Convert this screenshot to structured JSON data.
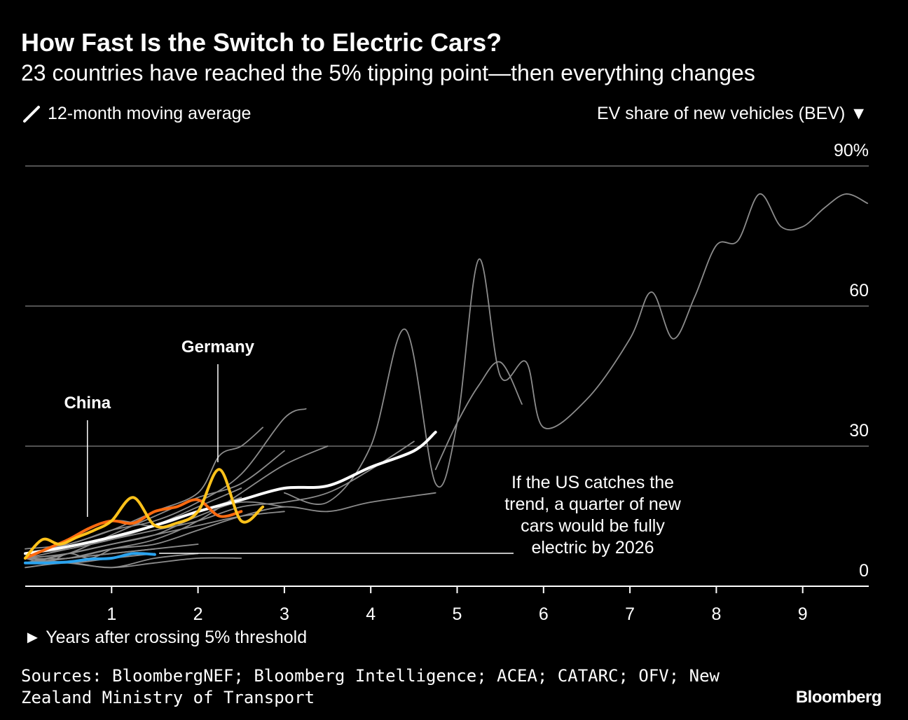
{
  "header": {
    "title": "How Fast Is the Switch to Electric Cars?",
    "subtitle": "23 countries have reached the 5% tipping point—then everything changes"
  },
  "key": {
    "moving_average_label": "12-month moving average",
    "moving_average_icon": "slash-line-icon",
    "y_axis_label": "EV share of new vehicles (BEV) ▼",
    "x_axis_label": "► Years after crossing 5% threshold"
  },
  "annotations": {
    "china": "China",
    "germany": "Germany",
    "us_note_lines": [
      "If the US catches the",
      "trend, a quarter of new",
      "cars would be fully",
      "electric by 2026"
    ]
  },
  "footer": {
    "sources": "Sources: BloombergNEF; Bloomberg Intelligence; ACEA; CATARC; OFV; New Zealand Ministry of Transport",
    "brand": "Bloomberg"
  },
  "colors": {
    "background": "#000000",
    "gridline": "#6e6e6e",
    "other_countries": "#8c8c8c",
    "average": "#ffffff",
    "china": "#ff6a10",
    "germany": "#ffc21a",
    "us": "#2aa3ef"
  },
  "chart_data": {
    "type": "line",
    "title": "How Fast Is the Switch to Electric Cars?",
    "subtitle": "23 countries have reached the 5% tipping point—then everything changes",
    "xlabel": "Years after crossing 5% threshold",
    "ylabel": "EV share of new vehicles (BEV)",
    "xlim": [
      0,
      9.8
    ],
    "ylim": [
      0,
      90
    ],
    "x_ticks": [
      1,
      2,
      3,
      4,
      5,
      6,
      7,
      8,
      9
    ],
    "y_ticks": [
      0,
      30,
      60,
      90
    ],
    "y_tick_labels": [
      "0",
      "30",
      "60",
      "90%"
    ],
    "grid": true,
    "series": [
      {
        "name": "China",
        "role": "highlight",
        "x": [
          0,
          0.25,
          0.5,
          0.75,
          1.0,
          1.25,
          1.5,
          1.75,
          2.0,
          2.25,
          2.5
        ],
        "y": [
          6,
          8,
          10,
          12.5,
          14,
          13.5,
          16,
          17,
          18.5,
          15,
          16
        ]
      },
      {
        "name": "Germany",
        "role": "highlight",
        "x": [
          0,
          0.2,
          0.4,
          0.6,
          0.8,
          1.0,
          1.25,
          1.5,
          1.75,
          2.0,
          2.25,
          2.5,
          2.75
        ],
        "y": [
          6,
          10,
          9,
          10.5,
          12,
          14,
          19,
          13,
          13.5,
          16,
          25,
          14,
          17
        ]
      },
      {
        "name": "US",
        "role": "highlight",
        "x": [
          0,
          0.25,
          0.5,
          0.75,
          1.0,
          1.25,
          1.5
        ],
        "y": [
          5,
          5,
          5.2,
          5.8,
          6,
          7,
          6.8
        ]
      },
      {
        "role": "average",
        "x": [
          0,
          0.5,
          1.0,
          1.5,
          2.0,
          2.5,
          3.0,
          3.5,
          4.0,
          4.5,
          4.75
        ],
        "y": [
          7,
          8.5,
          10.5,
          13,
          16,
          18.5,
          21,
          21.5,
          25.5,
          29,
          33
        ]
      },
      {
        "role": "country",
        "x": [
          3.0,
          3.5,
          4.0,
          4.4,
          4.75,
          5.0,
          5.25,
          5.5,
          5.8,
          6.0,
          6.5,
          7.0,
          7.25,
          7.5,
          7.75,
          8.0,
          8.25,
          8.5,
          8.75,
          9.0,
          9.25,
          9.5,
          9.75
        ],
        "y": [
          20,
          18,
          30,
          55,
          22,
          35,
          70,
          45,
          48,
          34,
          40,
          53,
          63,
          53,
          62,
          73,
          74,
          84,
          77,
          77,
          81,
          84,
          82
        ]
      },
      {
        "role": "country",
        "x": [
          4.75,
          5.0,
          5.25,
          5.5,
          5.75
        ],
        "y": [
          25,
          35,
          43,
          48,
          39
        ]
      },
      {
        "role": "country",
        "x": [
          0,
          0.5,
          1.0,
          1.5,
          2.0,
          2.5,
          3.0,
          3.5
        ],
        "y": [
          6,
          6,
          8,
          10,
          14,
          20,
          26,
          30
        ]
      },
      {
        "role": "country",
        "x": [
          0,
          0.5,
          1.0,
          1.5,
          2.0,
          2.5,
          3.0
        ],
        "y": [
          5,
          7,
          9,
          11,
          15,
          18,
          17
        ]
      },
      {
        "role": "country",
        "x": [
          0,
          0.5,
          1.0,
          1.5,
          2.0,
          2.5,
          3.0,
          3.5,
          4.0,
          4.5
        ],
        "y": [
          7,
          8,
          10,
          12,
          14,
          17,
          18,
          20,
          25,
          31
        ]
      },
      {
        "role": "country",
        "x": [
          0,
          0.5,
          1.0,
          1.5,
          2.0,
          2.5,
          3.0,
          3.5,
          4.0,
          4.75
        ],
        "y": [
          5,
          6,
          8,
          9,
          12,
          15,
          17,
          16,
          18,
          20
        ]
      },
      {
        "role": "country",
        "x": [
          0,
          0.5,
          1.0,
          1.5,
          2.0,
          2.5,
          3.0,
          3.25
        ],
        "y": [
          8,
          9,
          12,
          14,
          18,
          24,
          36,
          38
        ]
      },
      {
        "role": "country",
        "x": [
          0,
          0.5,
          1.0,
          1.5,
          2.0,
          2.5
        ],
        "y": [
          6,
          5,
          4,
          5,
          6,
          6
        ]
      },
      {
        "role": "country",
        "x": [
          0,
          0.5,
          1.0,
          1.5,
          2.0,
          2.25,
          2.5,
          2.75
        ],
        "y": [
          7,
          9,
          12,
          16,
          20,
          28,
          30,
          34
        ]
      },
      {
        "role": "country",
        "x": [
          0,
          0.5,
          1.0,
          1.5,
          2.0,
          2.5,
          3.0
        ],
        "y": [
          5,
          7,
          11,
          15,
          19,
          22,
          29
        ]
      },
      {
        "role": "country",
        "x": [
          0,
          0.5,
          1.0,
          1.5,
          2.0,
          2.5
        ],
        "y": [
          6,
          8,
          10,
          13,
          17,
          21
        ]
      },
      {
        "role": "country",
        "x": [
          0,
          0.5,
          1.0,
          1.5,
          2.0
        ],
        "y": [
          5,
          6,
          7,
          8,
          9
        ]
      },
      {
        "role": "country",
        "x": [
          0,
          0.5,
          1.0,
          1.5
        ],
        "y": [
          6,
          5,
          6,
          7
        ]
      },
      {
        "role": "country",
        "x": [
          0,
          0.5,
          1.0,
          1.5,
          2.0,
          2.5,
          3.0
        ],
        "y": [
          6,
          7,
          9,
          11,
          13,
          15,
          16
        ]
      },
      {
        "role": "country",
        "x": [
          0,
          0.5,
          1.0,
          1.5,
          2.0
        ],
        "y": [
          4,
          5,
          4,
          6,
          7
        ]
      },
      {
        "role": "country",
        "x": [
          0,
          0.5,
          1.0,
          1.5,
          2.0,
          2.5
        ],
        "y": [
          6,
          10,
          14,
          13,
          16,
          19
        ]
      },
      {
        "role": "country",
        "x": [
          0,
          0.5,
          1.0,
          1.5
        ],
        "y": [
          5,
          6,
          7,
          8
        ]
      },
      {
        "role": "country",
        "x": [
          0,
          0.25,
          0.5,
          0.75,
          1.0
        ],
        "y": [
          6,
          5,
          7,
          6,
          8
        ]
      }
    ]
  }
}
